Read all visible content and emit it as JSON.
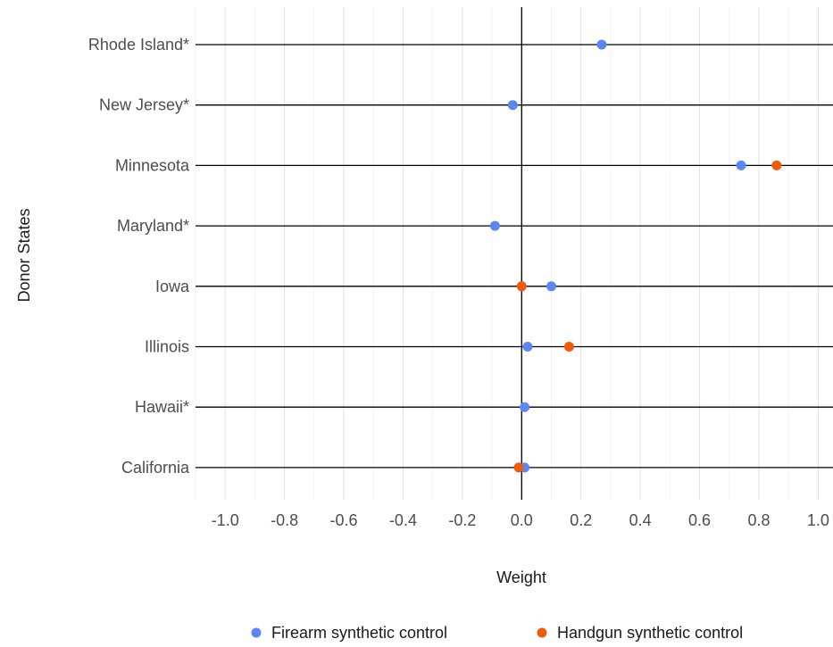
{
  "chart_data": {
    "type": "scatter",
    "orientation": "horizontal",
    "xlabel": "Weight",
    "ylabel": "Donor States",
    "xlim": [
      -1.1,
      1.05
    ],
    "x_ticks": [
      "-1.0",
      "-0.8",
      "-0.6",
      "-0.4",
      "-0.2",
      "0.0",
      "0.2",
      "0.4",
      "0.6",
      "0.8",
      "1.0"
    ],
    "categories": [
      "Rhode Island*",
      "New Jersey*",
      "Minnesota",
      "Maryland*",
      "Iowa",
      "Illinois",
      "Hawaii*",
      "California"
    ],
    "series": [
      {
        "name": "Firearm synthetic control",
        "color": "#5b87f5",
        "values": [
          0.27,
          -0.03,
          0.74,
          -0.09,
          0.1,
          0.02,
          0.01,
          0.01
        ]
      },
      {
        "name": "Handgun synthetic control",
        "color": "#ef5a0b",
        "values": [
          null,
          null,
          0.86,
          null,
          0.0,
          0.16,
          null,
          -0.01
        ]
      }
    ],
    "grid": true,
    "legend_position": "bottom"
  }
}
